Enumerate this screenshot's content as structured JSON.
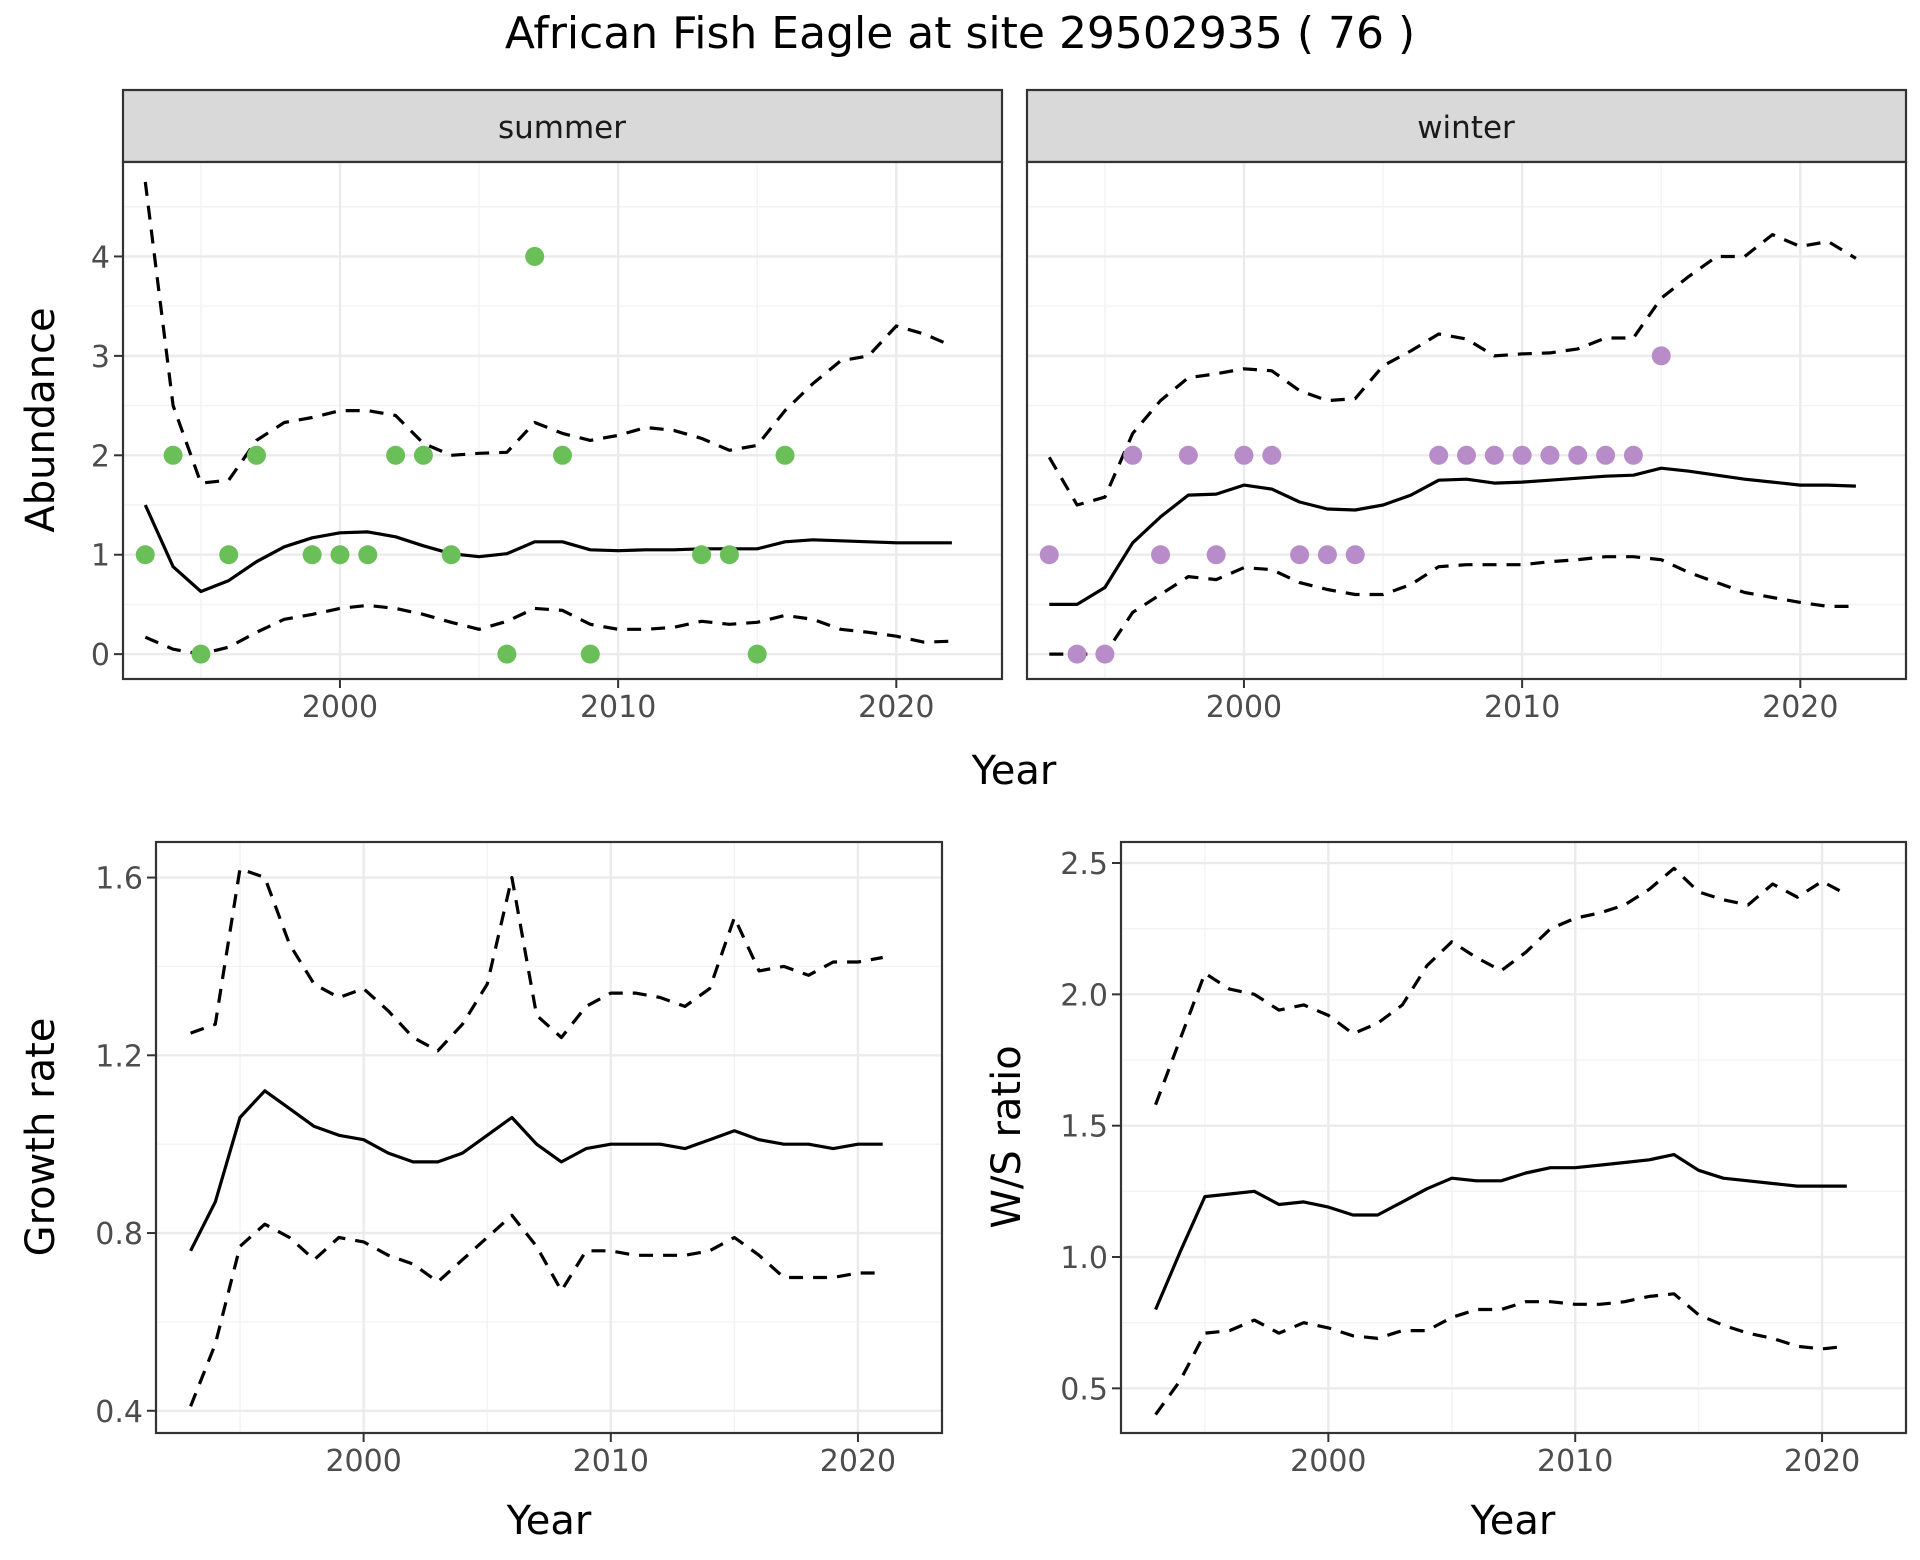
{
  "title": "African Fish Eagle at site 29502935 ( 76 )",
  "colors": {
    "summer_points": "#6bbf59",
    "winter_points": "#b88cc9",
    "lines": "#000000",
    "strip": "#d9d9d9"
  },
  "chart_data": [
    {
      "type": "scatter",
      "facet": "summer",
      "xlabel": "Year",
      "ylabel": "Abundance",
      "xlim": [
        1992.2,
        2023.8
      ],
      "ylim": [
        -0.25,
        4.95
      ],
      "xticks": [
        2000,
        2010,
        2020
      ],
      "xtick_labels": [
        "2000",
        "2010",
        "2020"
      ],
      "yticks": [
        0,
        1,
        2,
        3,
        4
      ],
      "ytick_labels": [
        "0",
        "1",
        "2",
        "3",
        "4"
      ],
      "grid": true,
      "points": {
        "color": "#6bbf59",
        "x": [
          1993,
          1994,
          1995,
          1996,
          1997,
          1999,
          2000,
          2001,
          2002,
          2003,
          2004,
          2006,
          2007,
          2008,
          2009,
          2013,
          2014,
          2015,
          2016
        ],
        "y": [
          1,
          2,
          0,
          1,
          2,
          1,
          1,
          1,
          2,
          2,
          1,
          0,
          4,
          2,
          0,
          1,
          1,
          0,
          2
        ]
      },
      "series": [
        {
          "style": "solid",
          "x": [
            1993,
            1994,
            1995,
            1996,
            1997,
            1998,
            1999,
            2000,
            2001,
            2002,
            2003,
            2004,
            2005,
            2006,
            2007,
            2008,
            2009,
            2010,
            2011,
            2012,
            2013,
            2014,
            2015,
            2016,
            2017,
            2018,
            2019,
            2020,
            2021,
            2022
          ],
          "values": [
            1.5,
            0.88,
            0.63,
            0.74,
            0.93,
            1.08,
            1.17,
            1.22,
            1.23,
            1.18,
            1.09,
            1.01,
            0.98,
            1.01,
            1.13,
            1.13,
            1.05,
            1.04,
            1.05,
            1.05,
            1.06,
            1.06,
            1.06,
            1.13,
            1.15,
            1.14,
            1.13,
            1.12,
            1.12,
            1.12
          ]
        },
        {
          "style": "dashed",
          "x": [
            1993,
            1994,
            1995,
            1996,
            1997,
            1998,
            1999,
            2000,
            2001,
            2002,
            2003,
            2004,
            2005,
            2006,
            2007,
            2008,
            2009,
            2010,
            2011,
            2012,
            2013,
            2014,
            2015,
            2016,
            2017,
            2018,
            2019,
            2020,
            2021,
            2022
          ],
          "values": [
            4.75,
            2.5,
            1.72,
            1.75,
            2.15,
            2.33,
            2.38,
            2.45,
            2.45,
            2.4,
            2.12,
            2.0,
            2.02,
            2.03,
            2.33,
            2.22,
            2.15,
            2.2,
            2.28,
            2.25,
            2.17,
            2.05,
            2.1,
            2.45,
            2.72,
            2.95,
            3.0,
            3.3,
            3.22,
            3.1
          ]
        },
        {
          "style": "dashed",
          "x": [
            1993,
            1994,
            1995,
            1996,
            1997,
            1998,
            1999,
            2000,
            2001,
            2002,
            2003,
            2004,
            2005,
            2006,
            2007,
            2008,
            2009,
            2010,
            2011,
            2012,
            2013,
            2014,
            2015,
            2016,
            2017,
            2018,
            2019,
            2020,
            2021,
            2022
          ],
          "values": [
            0.17,
            0.05,
            0.0,
            0.07,
            0.22,
            0.35,
            0.4,
            0.46,
            0.49,
            0.46,
            0.4,
            0.32,
            0.25,
            0.33,
            0.46,
            0.44,
            0.3,
            0.25,
            0.25,
            0.27,
            0.33,
            0.3,
            0.32,
            0.39,
            0.35,
            0.25,
            0.22,
            0.18,
            0.12,
            0.13
          ]
        }
      ]
    },
    {
      "type": "scatter",
      "facet": "winter",
      "xlabel": "Year",
      "ylabel": "Abundance",
      "xlim": [
        1992.2,
        2023.8
      ],
      "ylim": [
        -0.25,
        4.95
      ],
      "xticks": [
        2000,
        2010,
        2020
      ],
      "xtick_labels": [
        "2000",
        "2010",
        "2020"
      ],
      "yticks": [
        0,
        1,
        2,
        3,
        4
      ],
      "grid": true,
      "points": {
        "color": "#b88cc9",
        "x": [
          1993,
          1994,
          1995,
          1996,
          1997,
          1998,
          1999,
          2000,
          2001,
          2002,
          2003,
          2004,
          2007,
          2008,
          2009,
          2010,
          2011,
          2012,
          2013,
          2014,
          2015
        ],
        "y": [
          1,
          0,
          0,
          2,
          1,
          2,
          1,
          2,
          2,
          1,
          1,
          1,
          2,
          2,
          2,
          2,
          2,
          2,
          2,
          2,
          3
        ]
      },
      "series": [
        {
          "style": "solid",
          "x": [
            1993,
            1994,
            1995,
            1996,
            1997,
            1998,
            1999,
            2000,
            2001,
            2002,
            2003,
            2004,
            2005,
            2006,
            2007,
            2008,
            2009,
            2010,
            2011,
            2012,
            2013,
            2014,
            2015,
            2016,
            2017,
            2018,
            2019,
            2020,
            2021,
            2022
          ],
          "values": [
            0.5,
            0.5,
            0.67,
            1.12,
            1.38,
            1.6,
            1.61,
            1.7,
            1.66,
            1.53,
            1.46,
            1.45,
            1.5,
            1.6,
            1.75,
            1.76,
            1.72,
            1.73,
            1.75,
            1.77,
            1.79,
            1.8,
            1.87,
            1.84,
            1.8,
            1.76,
            1.73,
            1.7,
            1.7,
            1.69
          ]
        },
        {
          "style": "dashed",
          "x": [
            1993,
            1994,
            1995,
            1996,
            1997,
            1998,
            1999,
            2000,
            2001,
            2002,
            2003,
            2004,
            2005,
            2006,
            2007,
            2008,
            2009,
            2010,
            2011,
            2012,
            2013,
            2014,
            2015,
            2016,
            2017,
            2018,
            2019,
            2020,
            2021,
            2022
          ],
          "values": [
            1.98,
            1.5,
            1.58,
            2.22,
            2.55,
            2.78,
            2.82,
            2.87,
            2.85,
            2.65,
            2.55,
            2.57,
            2.9,
            3.05,
            3.22,
            3.17,
            3.0,
            3.02,
            3.03,
            3.07,
            3.18,
            3.18,
            3.58,
            3.8,
            4.0,
            4.0,
            4.22,
            4.1,
            4.15,
            3.98
          ]
        },
        {
          "style": "dashed",
          "x": [
            1993,
            1994,
            1995,
            1996,
            1997,
            1998,
            1999,
            2000,
            2001,
            2002,
            2003,
            2004,
            2005,
            2006,
            2007,
            2008,
            2009,
            2010,
            2011,
            2012,
            2013,
            2014,
            2015,
            2016,
            2017,
            2018,
            2019,
            2020,
            2021,
            2022
          ],
          "values": [
            0.0,
            0.0,
            0.0,
            0.42,
            0.6,
            0.78,
            0.75,
            0.87,
            0.85,
            0.72,
            0.65,
            0.6,
            0.6,
            0.7,
            0.88,
            0.9,
            0.9,
            0.9,
            0.93,
            0.95,
            0.98,
            0.98,
            0.95,
            0.82,
            0.72,
            0.62,
            0.57,
            0.52,
            0.48,
            0.48
          ]
        }
      ]
    },
    {
      "type": "line",
      "xlabel": "Year",
      "ylabel": "Growth rate",
      "xlim": [
        1991.6,
        2023.4
      ],
      "ylim": [
        0.35,
        1.68
      ],
      "xticks": [
        2000,
        2010,
        2020
      ],
      "xtick_labels": [
        "2000",
        "2010",
        "2020"
      ],
      "yticks": [
        0.4,
        0.8,
        1.2,
        1.6
      ],
      "ytick_labels": [
        "0.4",
        "0.8",
        "1.2",
        "1.6"
      ],
      "grid": true,
      "series": [
        {
          "style": "solid",
          "x": [
            1993,
            1994,
            1995,
            1996,
            1997,
            1998,
            1999,
            2000,
            2001,
            2002,
            2003,
            2004,
            2005,
            2006,
            2007,
            2008,
            2009,
            2010,
            2011,
            2012,
            2013,
            2014,
            2015,
            2016,
            2017,
            2018,
            2019,
            2020,
            2021
          ],
          "values": [
            0.76,
            0.87,
            1.06,
            1.12,
            1.08,
            1.04,
            1.02,
            1.01,
            0.98,
            0.96,
            0.96,
            0.98,
            1.02,
            1.06,
            1.0,
            0.96,
            0.99,
            1.0,
            1.0,
            1.0,
            0.99,
            1.01,
            1.03,
            1.01,
            1.0,
            1.0,
            0.99,
            1.0,
            1.0
          ]
        },
        {
          "style": "dashed",
          "x": [
            1993,
            1994,
            1995,
            1996,
            1997,
            1998,
            1999,
            2000,
            2001,
            2002,
            2003,
            2004,
            2005,
            2006,
            2007,
            2008,
            2009,
            2010,
            2011,
            2012,
            2013,
            2014,
            2015,
            2016,
            2017,
            2018,
            2019,
            2020,
            2021
          ],
          "values": [
            1.25,
            1.27,
            1.62,
            1.6,
            1.45,
            1.36,
            1.33,
            1.35,
            1.3,
            1.24,
            1.21,
            1.27,
            1.36,
            1.6,
            1.29,
            1.24,
            1.31,
            1.34,
            1.34,
            1.33,
            1.31,
            1.35,
            1.51,
            1.39,
            1.4,
            1.38,
            1.41,
            1.41,
            1.42
          ]
        },
        {
          "style": "dashed",
          "x": [
            1993,
            1994,
            1995,
            1996,
            1997,
            1998,
            1999,
            2000,
            2001,
            2002,
            2003,
            2004,
            2005,
            2006,
            2007,
            2008,
            2009,
            2010,
            2011,
            2012,
            2013,
            2014,
            2015,
            2016,
            2017,
            2018,
            2019,
            2020,
            2021
          ],
          "values": [
            0.41,
            0.55,
            0.77,
            0.82,
            0.79,
            0.74,
            0.79,
            0.78,
            0.75,
            0.73,
            0.69,
            0.74,
            0.79,
            0.84,
            0.77,
            0.67,
            0.76,
            0.76,
            0.75,
            0.75,
            0.75,
            0.76,
            0.79,
            0.75,
            0.7,
            0.7,
            0.7,
            0.71,
            0.71
          ]
        }
      ]
    },
    {
      "type": "line",
      "xlabel": "Year",
      "ylabel": "W/S ratio",
      "xlim": [
        1991.6,
        2023.4
      ],
      "ylim": [
        0.33,
        2.58
      ],
      "xticks": [
        2000,
        2010,
        2020
      ],
      "xtick_labels": [
        "2000",
        "2010",
        "2020"
      ],
      "yticks": [
        0.5,
        1.0,
        1.5,
        2.0,
        2.5
      ],
      "ytick_labels": [
        "0.5",
        "1.0",
        "1.5",
        "2.0",
        "2.5"
      ],
      "grid": true,
      "series": [
        {
          "style": "solid",
          "x": [
            1993,
            1994,
            1995,
            1996,
            1997,
            1998,
            1999,
            2000,
            2001,
            2002,
            2003,
            2004,
            2005,
            2006,
            2007,
            2008,
            2009,
            2010,
            2011,
            2012,
            2013,
            2014,
            2015,
            2016,
            2017,
            2018,
            2019,
            2020,
            2021
          ],
          "values": [
            0.8,
            1.02,
            1.23,
            1.24,
            1.25,
            1.2,
            1.21,
            1.19,
            1.16,
            1.16,
            1.21,
            1.26,
            1.3,
            1.29,
            1.29,
            1.32,
            1.34,
            1.34,
            1.35,
            1.36,
            1.37,
            1.39,
            1.33,
            1.3,
            1.29,
            1.28,
            1.27,
            1.27,
            1.27
          ]
        },
        {
          "style": "dashed",
          "x": [
            1993,
            1994,
            1995,
            1996,
            1997,
            1998,
            1999,
            2000,
            2001,
            2002,
            2003,
            2004,
            2005,
            2006,
            2007,
            2008,
            2009,
            2010,
            2011,
            2012,
            2013,
            2014,
            2015,
            2016,
            2017,
            2018,
            2019,
            2020,
            2021
          ],
          "values": [
            1.58,
            1.83,
            2.08,
            2.02,
            2.0,
            1.94,
            1.96,
            1.92,
            1.85,
            1.89,
            1.96,
            2.11,
            2.2,
            2.14,
            2.09,
            2.16,
            2.25,
            2.29,
            2.31,
            2.34,
            2.4,
            2.48,
            2.39,
            2.36,
            2.34,
            2.42,
            2.37,
            2.43,
            2.38
          ]
        },
        {
          "style": "dashed",
          "x": [
            1993,
            1994,
            1995,
            1996,
            1997,
            1998,
            1999,
            2000,
            2001,
            2002,
            2003,
            2004,
            2005,
            2006,
            2007,
            2008,
            2009,
            2010,
            2011,
            2012,
            2013,
            2014,
            2015,
            2016,
            2017,
            2018,
            2019,
            2020,
            2021
          ],
          "values": [
            0.4,
            0.53,
            0.71,
            0.72,
            0.76,
            0.71,
            0.75,
            0.73,
            0.7,
            0.69,
            0.72,
            0.72,
            0.77,
            0.8,
            0.8,
            0.83,
            0.83,
            0.82,
            0.82,
            0.83,
            0.85,
            0.86,
            0.78,
            0.74,
            0.71,
            0.69,
            0.66,
            0.65,
            0.66
          ]
        }
      ]
    }
  ]
}
